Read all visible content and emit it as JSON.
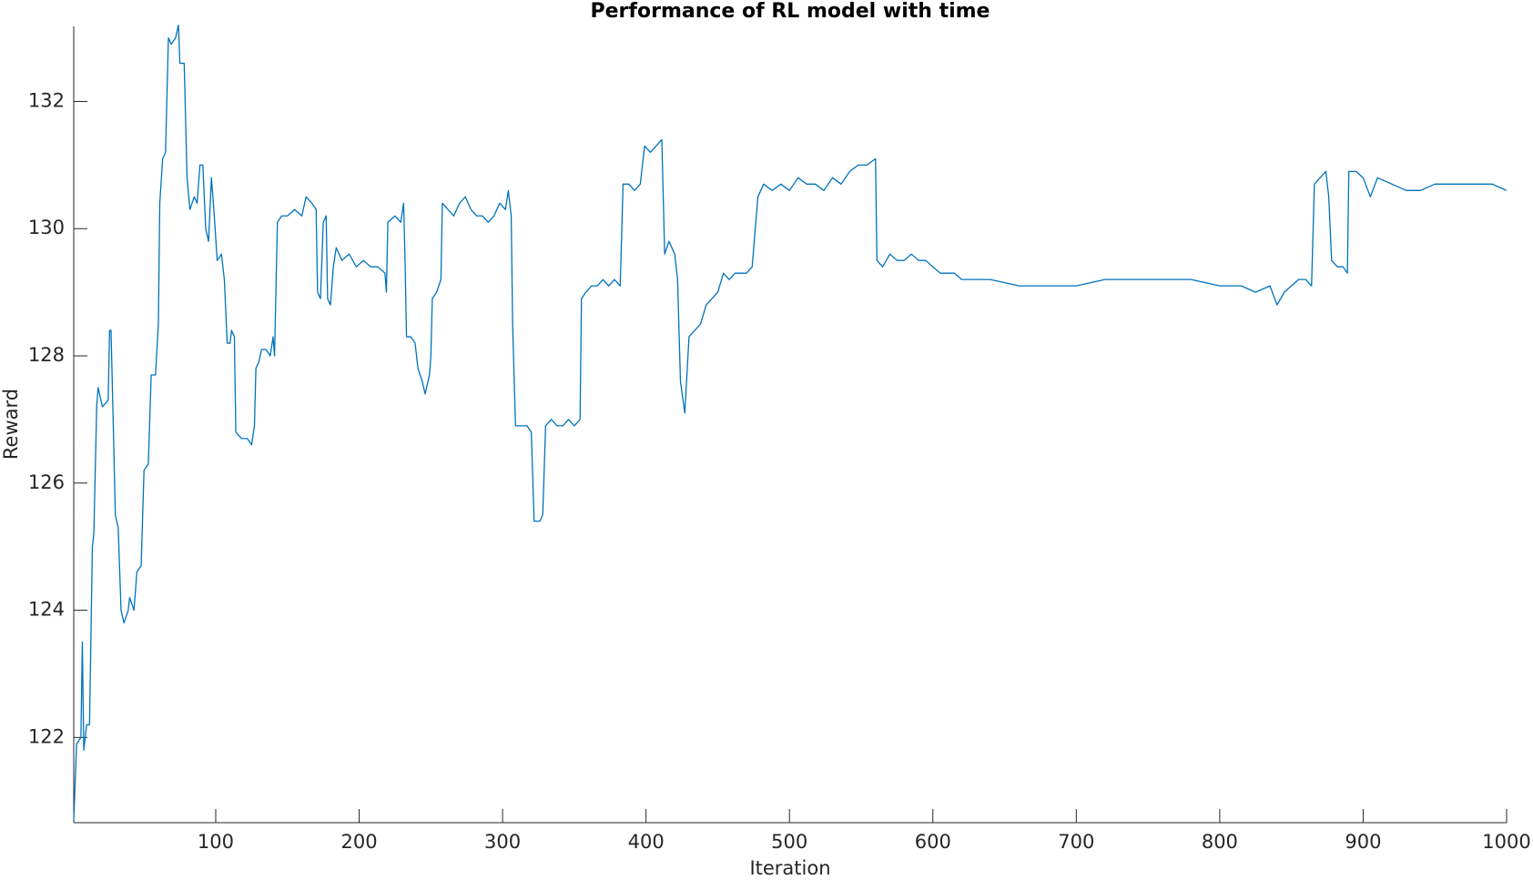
{
  "chart_data": {
    "type": "line",
    "title": "Performance of RL model with time",
    "xlabel": "Iteration",
    "ylabel": "Reward",
    "xlim": [
      1,
      1000
    ],
    "ylim": [
      120.66,
      133.18
    ],
    "xticks": [
      100,
      200,
      300,
      400,
      500,
      600,
      700,
      800,
      900,
      1000
    ],
    "yticks": [
      122,
      124,
      126,
      128,
      130,
      132
    ],
    "series": [
      {
        "color": "#0072bd",
        "x": [
          1,
          3,
          6,
          7,
          8,
          10,
          12,
          14,
          15,
          17,
          18,
          21,
          25,
          26,
          27,
          29,
          30,
          32,
          34,
          36,
          39,
          40,
          43,
          45,
          48,
          50,
          53,
          55,
          58,
          60,
          61,
          63,
          65,
          67,
          69,
          72,
          74,
          75,
          78,
          80,
          82,
          85,
          87,
          89,
          91,
          93,
          95,
          97,
          99,
          101,
          104,
          106,
          108,
          110,
          111,
          113,
          114,
          118,
          122,
          125,
          127,
          128,
          130,
          132,
          135,
          138,
          140,
          141,
          143,
          146,
          150,
          155,
          160,
          163,
          167,
          170,
          171,
          173,
          175,
          177,
          178,
          180,
          182,
          184,
          188,
          193,
          198,
          203,
          208,
          213,
          218,
          219,
          220,
          225,
          229,
          231,
          232,
          233,
          236,
          239,
          241,
          244,
          246,
          249,
          250,
          251,
          254,
          257,
          258,
          262,
          266,
          270,
          274,
          278,
          282,
          286,
          290,
          294,
          298,
          302,
          304,
          306,
          307,
          309,
          313,
          317,
          320,
          322,
          326,
          328,
          330,
          334,
          338,
          342,
          346,
          350,
          354,
          355,
          358,
          362,
          366,
          370,
          374,
          378,
          382,
          384,
          388,
          392,
          396,
          399,
          403,
          407,
          411,
          413,
          416,
          420,
          422,
          424,
          427,
          430,
          434,
          438,
          442,
          446,
          450,
          454,
          458,
          462,
          466,
          470,
          474,
          478,
          482,
          488,
          494,
          500,
          506,
          512,
          518,
          524,
          530,
          536,
          542,
          548,
          554,
          560,
          561,
          565,
          570,
          575,
          580,
          585,
          590,
          595,
          600,
          605,
          610,
          615,
          620,
          640,
          660,
          680,
          700,
          720,
          740,
          760,
          780,
          800,
          815,
          825,
          835,
          840,
          845,
          850,
          855,
          860,
          864,
          866,
          870,
          874,
          876,
          878,
          882,
          886,
          889,
          890,
          895,
          900,
          905,
          910,
          920,
          930,
          940,
          950,
          960,
          970,
          980,
          990,
          1000
        ],
        "values": [
          120.7,
          121.9,
          122.0,
          123.5,
          121.8,
          122.2,
          122.2,
          125.0,
          125.2,
          127.2,
          127.5,
          127.2,
          127.3,
          128.4,
          128.4,
          126.5,
          125.5,
          125.3,
          124.0,
          123.8,
          124.0,
          124.2,
          124.0,
          124.6,
          124.7,
          126.2,
          126.3,
          127.7,
          127.7,
          128.5,
          130.4,
          131.1,
          131.2,
          133.0,
          132.9,
          133.0,
          133.2,
          132.6,
          132.6,
          130.8,
          130.3,
          130.5,
          130.4,
          131.0,
          131.0,
          130.0,
          129.8,
          130.8,
          130.2,
          129.5,
          129.6,
          129.2,
          128.2,
          128.2,
          128.4,
          128.3,
          126.8,
          126.7,
          126.7,
          126.6,
          126.9,
          127.8,
          127.9,
          128.1,
          128.1,
          128.0,
          128.3,
          128.0,
          130.1,
          130.2,
          130.2,
          130.3,
          130.2,
          130.5,
          130.4,
          130.3,
          129.0,
          128.9,
          130.1,
          130.2,
          128.9,
          128.8,
          129.4,
          129.7,
          129.5,
          129.6,
          129.4,
          129.5,
          129.4,
          129.4,
          129.3,
          129.0,
          130.1,
          130.2,
          130.1,
          130.4,
          129.5,
          128.3,
          128.3,
          128.2,
          127.8,
          127.6,
          127.4,
          127.7,
          128.0,
          128.9,
          129.0,
          129.2,
          130.4,
          130.3,
          130.2,
          130.4,
          130.5,
          130.3,
          130.2,
          130.2,
          130.1,
          130.2,
          130.4,
          130.3,
          130.6,
          130.2,
          128.5,
          126.9,
          126.9,
          126.9,
          126.8,
          125.4,
          125.4,
          125.5,
          126.9,
          127.0,
          126.9,
          126.9,
          127.0,
          126.9,
          127.0,
          128.9,
          129.0,
          129.1,
          129.1,
          129.2,
          129.1,
          129.2,
          129.1,
          130.7,
          130.7,
          130.6,
          130.7,
          131.3,
          131.2,
          131.3,
          131.4,
          129.6,
          129.8,
          129.6,
          129.2,
          127.6,
          127.1,
          128.3,
          128.4,
          128.5,
          128.8,
          128.9,
          129.0,
          129.3,
          129.2,
          129.3,
          129.3,
          129.3,
          129.4,
          130.5,
          130.7,
          130.6,
          130.7,
          130.6,
          130.8,
          130.7,
          130.7,
          130.6,
          130.8,
          130.7,
          130.9,
          131.0,
          131.0,
          131.1,
          129.5,
          129.4,
          129.6,
          129.5,
          129.5,
          129.6,
          129.5,
          129.5,
          129.4,
          129.3,
          129.3,
          129.3,
          129.2,
          129.2,
          129.1,
          129.1,
          129.1,
          129.2,
          129.2,
          129.2,
          129.2,
          129.1,
          129.1,
          129.0,
          129.1,
          128.8,
          129.0,
          129.1,
          129.2,
          129.2,
          129.1,
          130.7,
          130.8,
          130.9,
          130.5,
          129.5,
          129.4,
          129.4,
          129.3,
          130.9,
          130.9,
          130.8,
          130.5,
          130.8,
          130.7,
          130.6,
          130.6,
          130.7,
          130.7,
          130.7,
          130.7,
          130.7,
          130.6
        ]
      }
    ]
  }
}
